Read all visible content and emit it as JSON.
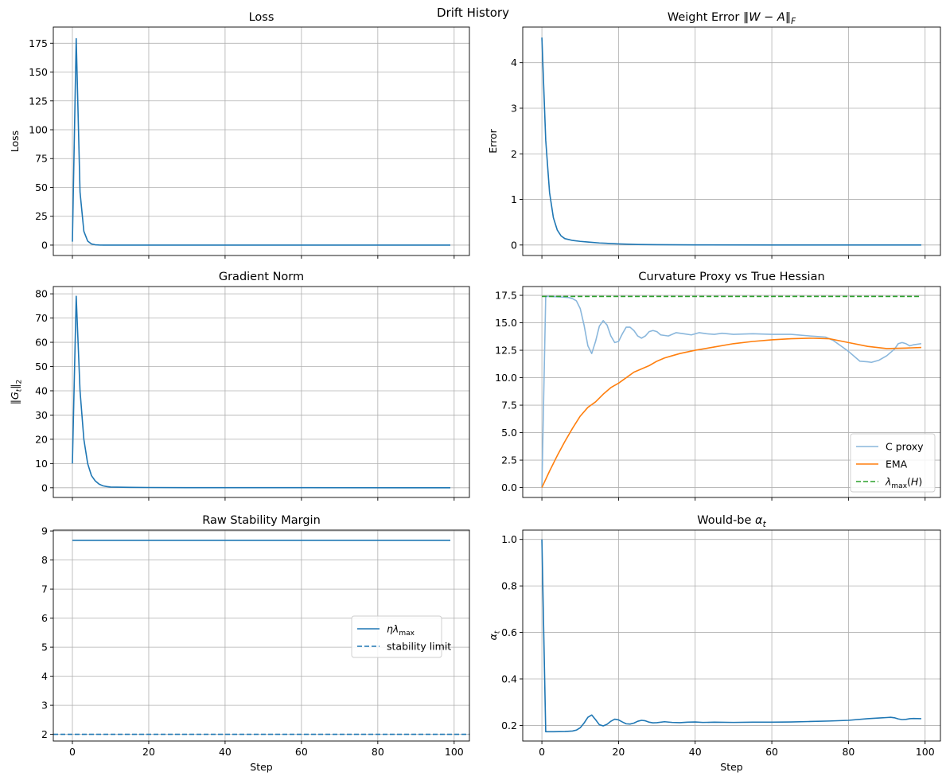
{
  "figure": {
    "title": "Drift History"
  },
  "chart_data": [
    {
      "type": "line",
      "title": "Loss",
      "xlabel": "",
      "ylabel": "Loss",
      "xlim": [
        -5,
        104
      ],
      "ylim": [
        -9,
        189
      ],
      "xticks": [
        0,
        20,
        40,
        60,
        80,
        100
      ],
      "show_xticklabels": false,
      "yticks": [
        0,
        25,
        50,
        75,
        100,
        125,
        150,
        175
      ],
      "ytick_labels": [
        "0",
        "25",
        "50",
        "75",
        "100",
        "125",
        "150",
        "175"
      ],
      "grid": true,
      "legend": null,
      "series": [
        {
          "color": "#1f77b4",
          "dash": "",
          "points": [
            [
              0,
              3
            ],
            [
              1,
              179
            ],
            [
              2,
              46
            ],
            [
              3,
              12
            ],
            [
              4,
              3.5
            ],
            [
              5,
              1
            ],
            [
              6,
              0.3
            ],
            [
              7,
              0.1
            ],
            [
              8,
              0
            ],
            [
              99,
              0
            ]
          ]
        }
      ]
    },
    {
      "type": "line",
      "title": "Weight Error ‖W − A‖F",
      "xlabel": "",
      "ylabel": "Error",
      "xlim": [
        -5,
        104
      ],
      "ylim": [
        -0.23,
        4.78
      ],
      "xticks": [
        0,
        20,
        40,
        60,
        80,
        100
      ],
      "show_xticklabels": false,
      "yticks": [
        0,
        1,
        2,
        3,
        4
      ],
      "ytick_labels": [
        "0",
        "1",
        "2",
        "3",
        "4"
      ],
      "grid": true,
      "legend": null,
      "series": [
        {
          "color": "#1f77b4",
          "dash": "",
          "points": [
            [
              0,
              4.55
            ],
            [
              1,
              2.3
            ],
            [
              2,
              1.15
            ],
            [
              3,
              0.6
            ],
            [
              4,
              0.33
            ],
            [
              5,
              0.2
            ],
            [
              6,
              0.14
            ],
            [
              7,
              0.12
            ],
            [
              8,
              0.1
            ],
            [
              10,
              0.08
            ],
            [
              12,
              0.065
            ],
            [
              15,
              0.045
            ],
            [
              20,
              0.025
            ],
            [
              25,
              0.012
            ],
            [
              30,
              0.006
            ],
            [
              40,
              0.002
            ],
            [
              60,
              0
            ],
            [
              99,
              0
            ]
          ]
        }
      ]
    },
    {
      "type": "line",
      "title": "Gradient Norm",
      "xlabel": "",
      "ylabel": "‖Gt‖2",
      "xlim": [
        -5,
        104
      ],
      "ylim": [
        -4,
        83
      ],
      "xticks": [
        0,
        20,
        40,
        60,
        80,
        100
      ],
      "show_xticklabels": false,
      "yticks": [
        0,
        10,
        20,
        30,
        40,
        50,
        60,
        70,
        80
      ],
      "ytick_labels": [
        "0",
        "10",
        "20",
        "30",
        "40",
        "50",
        "60",
        "70",
        "80"
      ],
      "grid": true,
      "legend": null,
      "series": [
        {
          "color": "#1f77b4",
          "dash": "",
          "points": [
            [
              0,
              10
            ],
            [
              1,
              79
            ],
            [
              2,
              40
            ],
            [
              3,
              20
            ],
            [
              4,
              10
            ],
            [
              5,
              5
            ],
            [
              6,
              2.8
            ],
            [
              7,
              1.5
            ],
            [
              8,
              0.8
            ],
            [
              9,
              0.5
            ],
            [
              10,
              0.3
            ],
            [
              15,
              0.15
            ],
            [
              20,
              0.1
            ],
            [
              30,
              0.05
            ],
            [
              99,
              0
            ]
          ]
        }
      ]
    },
    {
      "type": "line",
      "title": "Curvature Proxy vs True Hessian",
      "xlabel": "",
      "ylabel": "",
      "xlim": [
        -5,
        104
      ],
      "ylim": [
        -0.9,
        18.3
      ],
      "xticks": [
        0,
        20,
        40,
        60,
        80,
        100
      ],
      "show_xticklabels": false,
      "yticks": [
        0,
        2.5,
        5,
        7.5,
        10,
        12.5,
        15,
        17.5
      ],
      "ytick_labels": [
        "0.0",
        "2.5",
        "5.0",
        "7.5",
        "10.0",
        "12.5",
        "15.0",
        "17.5"
      ],
      "grid": true,
      "legend": {
        "position": "lower-right",
        "entries": [
          "C proxy",
          "EMA",
          "λmax(H)"
        ]
      },
      "series": [
        {
          "name": "C proxy",
          "color": "#8ab7dc",
          "dash": "",
          "points": [
            [
              0,
              0
            ],
            [
              1,
              17.4
            ],
            [
              2,
              17.4
            ],
            [
              5,
              17.35
            ],
            [
              7,
              17.3
            ],
            [
              8,
              17.2
            ],
            [
              9,
              17
            ],
            [
              10,
              16.3
            ],
            [
              11,
              14.8
            ],
            [
              12,
              12.9
            ],
            [
              13,
              12.2
            ],
            [
              14,
              13.3
            ],
            [
              15,
              14.7
            ],
            [
              16,
              15.2
            ],
            [
              17,
              14.8
            ],
            [
              18,
              13.8
            ],
            [
              19,
              13.2
            ],
            [
              20,
              13.3
            ],
            [
              21,
              14
            ],
            [
              22,
              14.6
            ],
            [
              23,
              14.6
            ],
            [
              24,
              14.3
            ],
            [
              25,
              13.8
            ],
            [
              26,
              13.6
            ],
            [
              27,
              13.8
            ],
            [
              28,
              14.2
            ],
            [
              29,
              14.3
            ],
            [
              30,
              14.2
            ],
            [
              31,
              13.9
            ],
            [
              33,
              13.8
            ],
            [
              35,
              14.1
            ],
            [
              37,
              14
            ],
            [
              39,
              13.9
            ],
            [
              41,
              14.1
            ],
            [
              43,
              14
            ],
            [
              45,
              13.95
            ],
            [
              47,
              14.05
            ],
            [
              50,
              13.95
            ],
            [
              55,
              14
            ],
            [
              60,
              13.95
            ],
            [
              65,
              13.95
            ],
            [
              70,
              13.8
            ],
            [
              72,
              13.75
            ],
            [
              74,
              13.7
            ],
            [
              76,
              13.4
            ],
            [
              78,
              12.9
            ],
            [
              80,
              12.4
            ],
            [
              82,
              11.8
            ],
            [
              83,
              11.5
            ],
            [
              85,
              11.45
            ],
            [
              86,
              11.4
            ],
            [
              88,
              11.6
            ],
            [
              90,
              12
            ],
            [
              92,
              12.6
            ],
            [
              93,
              13.1
            ],
            [
              94,
              13.2
            ],
            [
              95,
              13.1
            ],
            [
              96,
              12.9
            ],
            [
              97,
              13
            ],
            [
              99,
              13.1
            ]
          ]
        },
        {
          "name": "EMA",
          "color": "#ff7f0e",
          "dash": "",
          "points": [
            [
              0,
              0
            ],
            [
              2,
              1.5
            ],
            [
              4,
              2.9
            ],
            [
              6,
              4.2
            ],
            [
              8,
              5.4
            ],
            [
              10,
              6.5
            ],
            [
              12,
              7.3
            ],
            [
              14,
              7.8
            ],
            [
              16,
              8.5
            ],
            [
              18,
              9.1
            ],
            [
              20,
              9.5
            ],
            [
              22,
              10
            ],
            [
              24,
              10.5
            ],
            [
              26,
              10.8
            ],
            [
              28,
              11.1
            ],
            [
              30,
              11.5
            ],
            [
              32,
              11.8
            ],
            [
              34,
              12
            ],
            [
              36,
              12.2
            ],
            [
              40,
              12.5
            ],
            [
              45,
              12.8
            ],
            [
              50,
              13.1
            ],
            [
              55,
              13.3
            ],
            [
              60,
              13.45
            ],
            [
              65,
              13.55
            ],
            [
              70,
              13.6
            ],
            [
              75,
              13.55
            ],
            [
              80,
              13.2
            ],
            [
              85,
              12.85
            ],
            [
              90,
              12.65
            ],
            [
              95,
              12.7
            ],
            [
              99,
              12.75
            ]
          ]
        },
        {
          "name": "λmax(H)",
          "color": "#2ca02c",
          "dash": "6,3",
          "points": [
            [
              0,
              17.4
            ],
            [
              99,
              17.4
            ]
          ]
        }
      ]
    },
    {
      "type": "line",
      "title": "Raw Stability Margin",
      "xlabel": "Step",
      "ylabel": "",
      "xlim": [
        -5,
        104
      ],
      "ylim": [
        1.77,
        9.03
      ],
      "xticks": [
        0,
        20,
        40,
        60,
        80,
        100
      ],
      "show_xticklabels": true,
      "xtick_labels": [
        "0",
        "20",
        "40",
        "60",
        "80",
        "100"
      ],
      "yticks": [
        2,
        3,
        4,
        5,
        6,
        7,
        8,
        9
      ],
      "ytick_labels": [
        "2",
        "3",
        "4",
        "5",
        "6",
        "7",
        "8",
        "9"
      ],
      "grid": true,
      "legend": {
        "position": "center-right",
        "entries": [
          "ηλmax",
          "stability limit"
        ]
      },
      "series": [
        {
          "name": "ηλmax",
          "color": "#1f77b4",
          "dash": "",
          "points": [
            [
              0,
              8.68
            ],
            [
              99,
              8.68
            ]
          ]
        },
        {
          "name": "stability limit",
          "color": "#1f77b4",
          "dash": "6,3",
          "span": true,
          "points": [
            [
              -5,
              2
            ],
            [
              104,
              2
            ]
          ]
        }
      ]
    },
    {
      "type": "line",
      "title": "Would-be αt",
      "xlabel": "Step",
      "ylabel": "αt",
      "xlim": [
        -5,
        104
      ],
      "ylim": [
        0.133,
        1.04
      ],
      "xticks": [
        0,
        20,
        40,
        60,
        80,
        100
      ],
      "show_xticklabels": true,
      "xtick_labels": [
        "0",
        "20",
        "40",
        "60",
        "80",
        "100"
      ],
      "yticks": [
        0.2,
        0.4,
        0.6,
        0.8,
        1.0
      ],
      "ytick_labels": [
        "0.2",
        "0.4",
        "0.6",
        "0.8",
        "1.0"
      ],
      "grid": true,
      "legend": null,
      "series": [
        {
          "color": "#1f77b4",
          "dash": "",
          "points": [
            [
              0,
              1
            ],
            [
              1,
              0.173
            ],
            [
              3,
              0.173
            ],
            [
              6,
              0.174
            ],
            [
              8,
              0.176
            ],
            [
              9,
              0.18
            ],
            [
              10,
              0.19
            ],
            [
              11,
              0.21
            ],
            [
              12,
              0.235
            ],
            [
              13,
              0.245
            ],
            [
              14,
              0.225
            ],
            [
              15,
              0.203
            ],
            [
              16,
              0.198
            ],
            [
              17,
              0.205
            ],
            [
              18,
              0.218
            ],
            [
              19,
              0.227
            ],
            [
              20,
              0.224
            ],
            [
              21,
              0.215
            ],
            [
              22,
              0.207
            ],
            [
              23,
              0.206
            ],
            [
              24,
              0.21
            ],
            [
              25,
              0.218
            ],
            [
              26,
              0.222
            ],
            [
              27,
              0.22
            ],
            [
              28,
              0.214
            ],
            [
              29,
              0.211
            ],
            [
              30,
              0.212
            ],
            [
              32,
              0.216
            ],
            [
              34,
              0.213
            ],
            [
              36,
              0.212
            ],
            [
              38,
              0.214
            ],
            [
              40,
              0.215
            ],
            [
              42,
              0.213
            ],
            [
              45,
              0.214
            ],
            [
              50,
              0.213
            ],
            [
              55,
              0.214
            ],
            [
              60,
              0.214
            ],
            [
              65,
              0.215
            ],
            [
              70,
              0.217
            ],
            [
              75,
              0.219
            ],
            [
              80,
              0.222
            ],
            [
              85,
              0.229
            ],
            [
              88,
              0.232
            ],
            [
              90,
              0.234
            ],
            [
              91,
              0.235
            ],
            [
              92,
              0.233
            ],
            [
              93,
              0.228
            ],
            [
              94,
              0.225
            ],
            [
              95,
              0.226
            ],
            [
              96,
              0.229
            ],
            [
              97,
              0.23
            ],
            [
              99,
              0.229
            ]
          ]
        }
      ]
    }
  ]
}
